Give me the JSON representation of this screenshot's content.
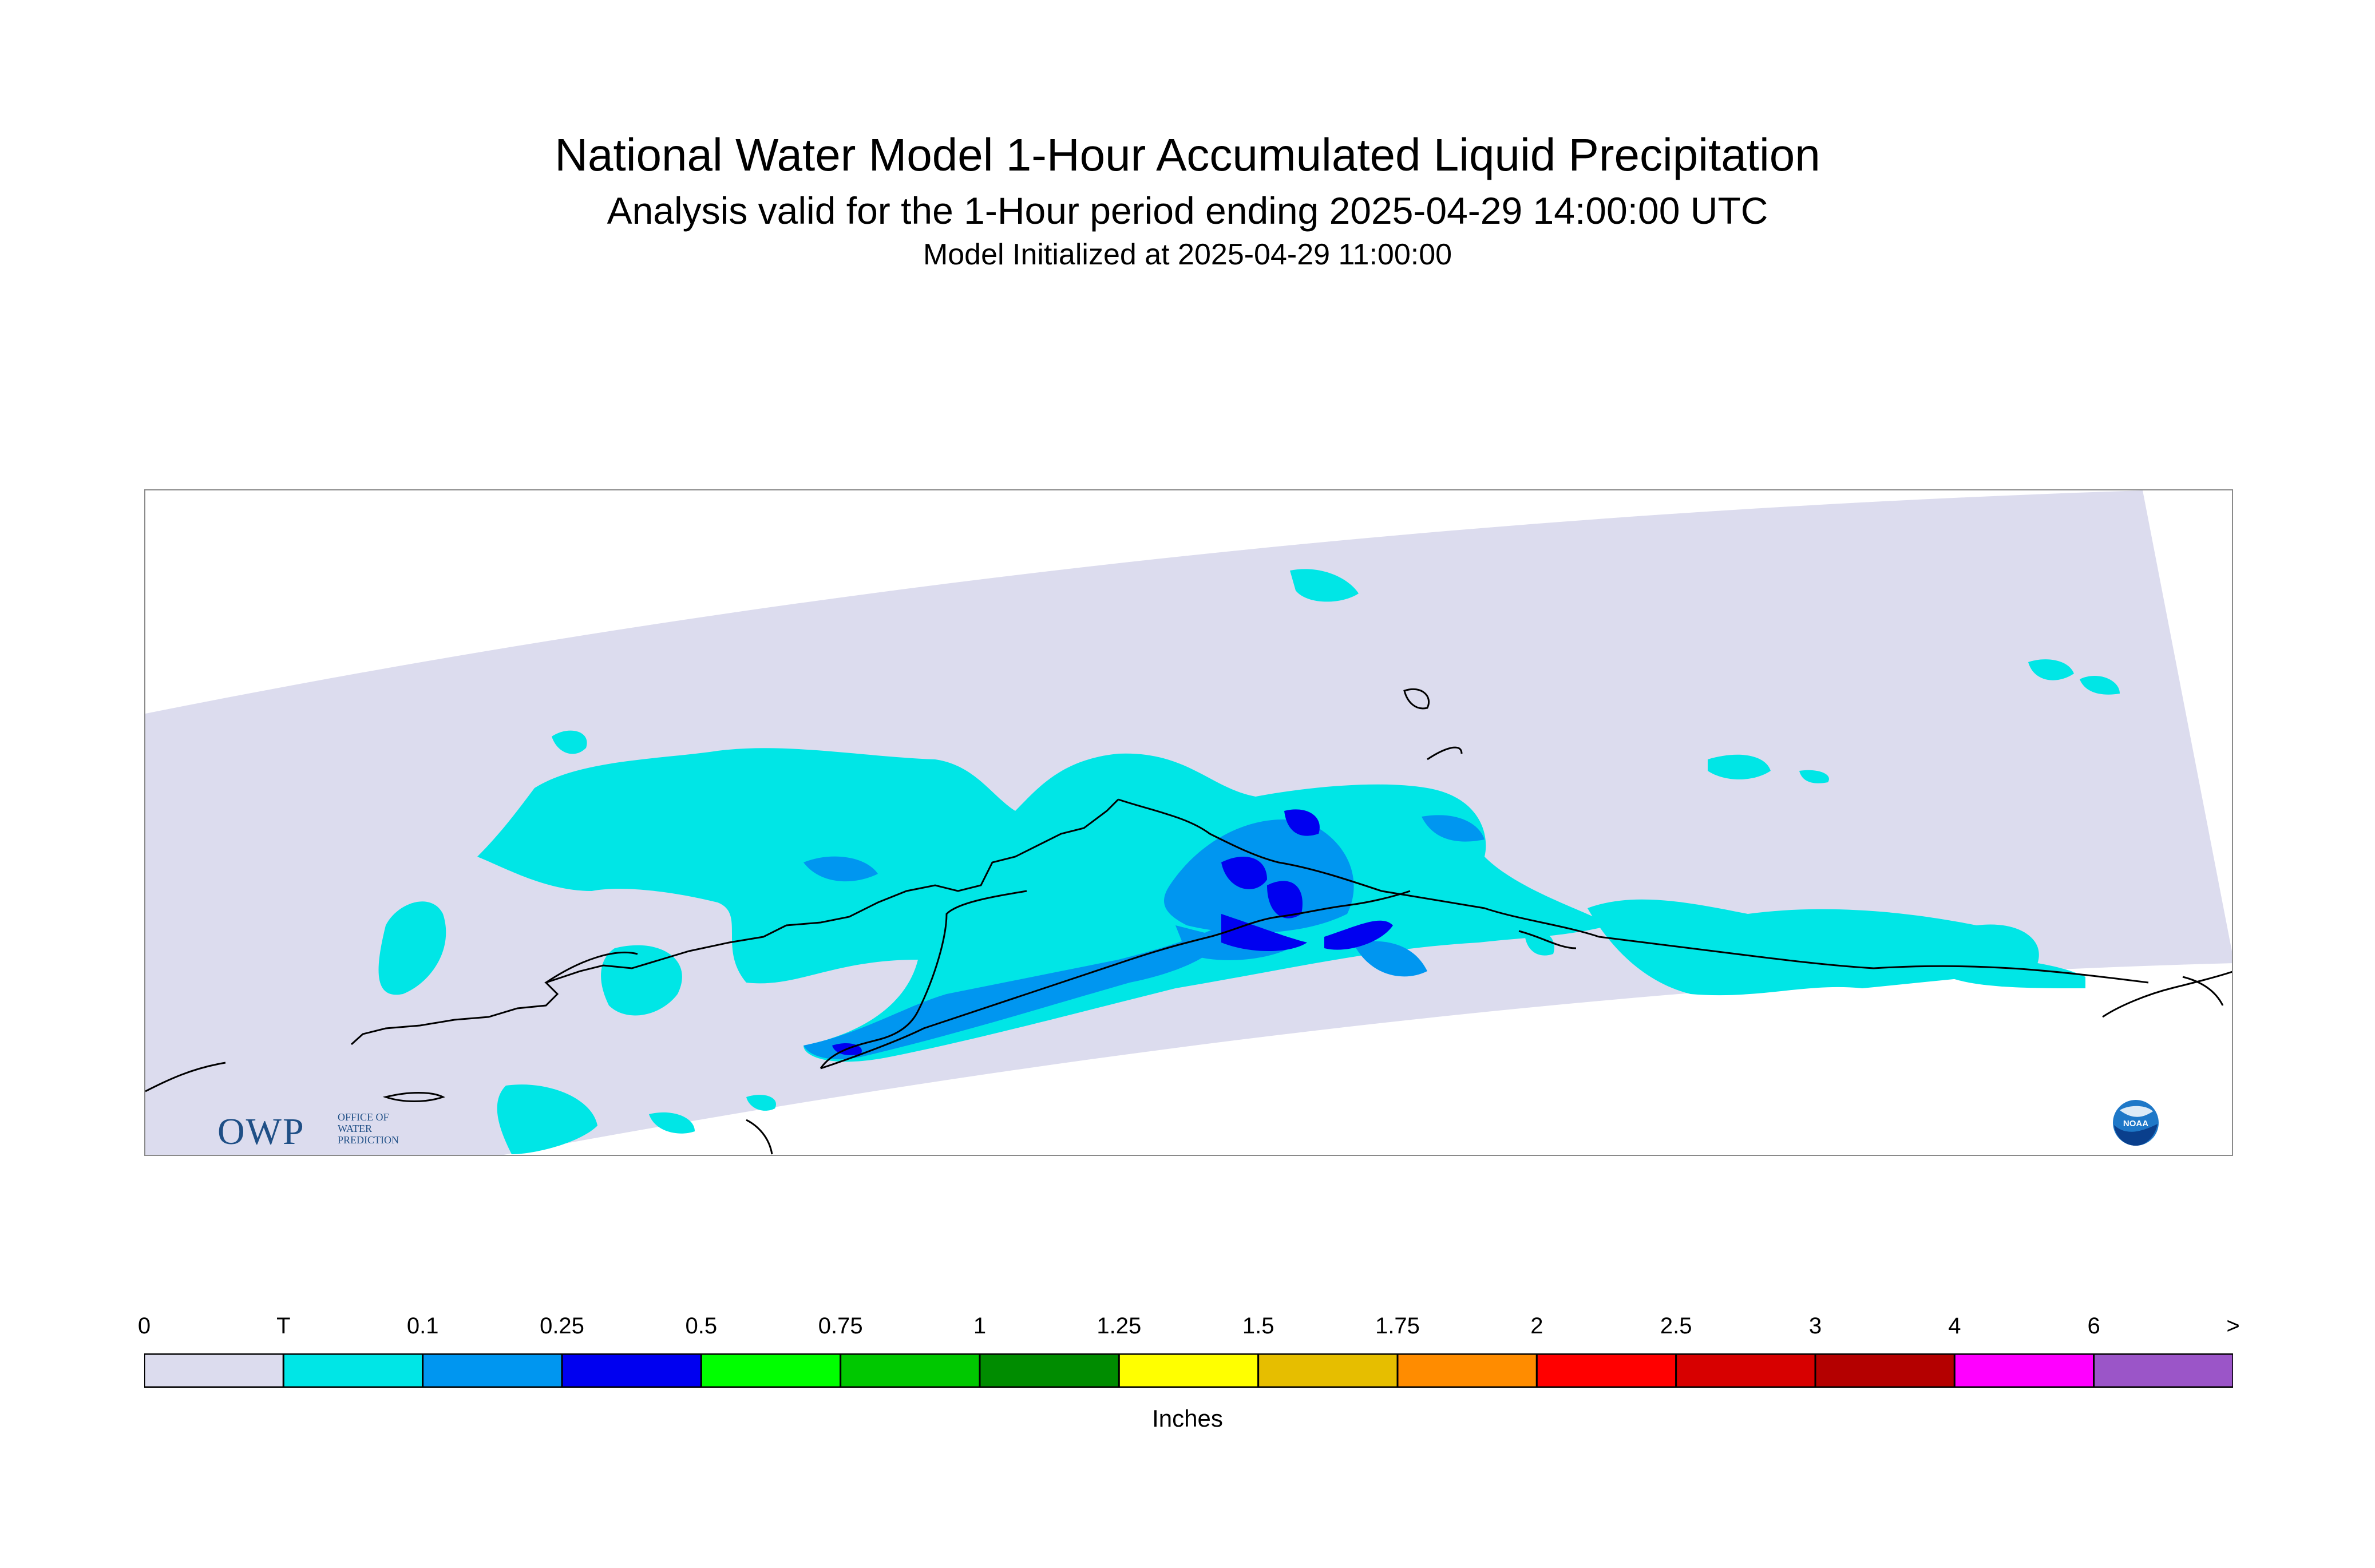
{
  "header": {
    "title": "National Water Model 1-Hour Accumulated Liquid Precipitation",
    "subtitle": "Analysis valid for the 1-Hour period ending 2025-04-29 14:00:00 UTC",
    "init": "Model Initialized at 2025-04-29 11:00:00"
  },
  "logos": {
    "owp": {
      "letters": "OWP",
      "line1": "OFFICE OF",
      "line2": "WATER",
      "line3": "PREDICTION",
      "icon": "owp-logo"
    },
    "noaa": {
      "text": "NOAA",
      "icon": "noaa-logo"
    }
  },
  "legend": {
    "units": "Inches",
    "ticks": [
      "0",
      "T",
      "0.1",
      "0.25",
      "0.5",
      "0.75",
      "1",
      "1.25",
      "1.5",
      "1.75",
      "2",
      "2.5",
      "3",
      "4",
      "6",
      ">"
    ],
    "colors": [
      "#dcdcee",
      "#00e6e6",
      "#0096f0",
      "#0000f0",
      "#00ff00",
      "#00c800",
      "#008c00",
      "#ffff00",
      "#e6be00",
      "#ff8c00",
      "#ff0000",
      "#d70000",
      "#b40000",
      "#ff00ff",
      "#9b55c8"
    ]
  },
  "map": {
    "colors": {
      "domain": "#dcdcee",
      "trace": "#00e6e6",
      "light": "#0096f0",
      "moderate": "#0000f0",
      "coast": "#000000"
    }
  }
}
